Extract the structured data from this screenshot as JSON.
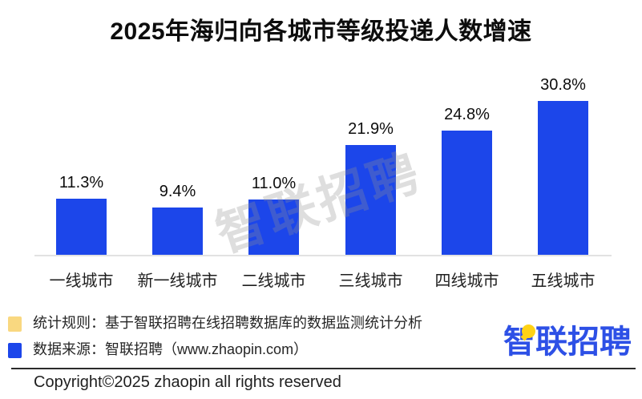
{
  "title": "2025年海归向各城市等级投递人数增速",
  "watermark": {
    "text": "智联招聘"
  },
  "chart_data": {
    "type": "bar",
    "title": "2025年海归向各城市等级投递人数增速",
    "categories": [
      "一线城市",
      "新一线城市",
      "二线城市",
      "三线城市",
      "四线城市",
      "五线城市"
    ],
    "values": [
      11.3,
      9.4,
      11.0,
      21.9,
      24.8,
      30.8
    ],
    "value_labels": [
      "11.3%",
      "9.4%",
      "11.0%",
      "21.9%",
      "24.8%",
      "30.8%"
    ],
    "xlabel": "",
    "ylabel": "",
    "ylim": [
      0,
      33
    ],
    "grid": false,
    "legend_position": "none",
    "bar_color": "#1c46ea"
  },
  "footer": {
    "legend": [
      {
        "label": "统计规则：基于智联招聘在线招聘数据库的数据监测统计分析",
        "swatch_color": "#f9d880"
      },
      {
        "label": "数据来源：智联招聘（www.zhaopin.com）",
        "swatch_color": "#1c46ea"
      }
    ],
    "logo_text": "智联招聘",
    "copyright": "Copyright©2025 zhaopin all rights reserved"
  },
  "colors": {
    "bar": "#1c46ea",
    "axis_line": "#e2e2e2",
    "watermark_gray": "#919191",
    "legend_yellow": "#f9d880",
    "legend_blue": "#1c46ea",
    "logo_blue": "#2d50e6",
    "logo_pin_yellow": "#ffd215",
    "text": "#0d0d0d"
  }
}
